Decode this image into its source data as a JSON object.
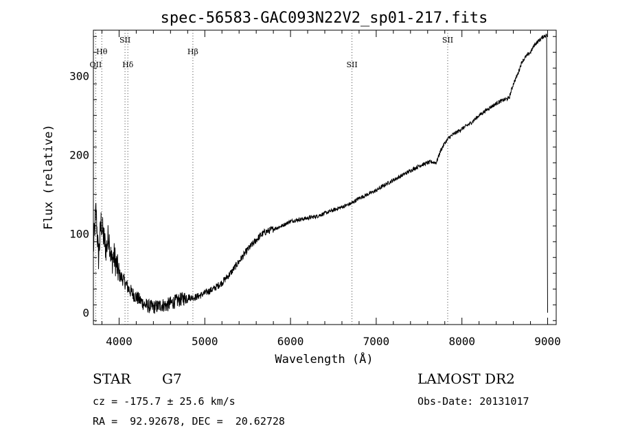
{
  "chart_data": {
    "type": "line",
    "title": "spec-56583-GAC093N22V2_sp01-217.fits",
    "xlabel": "Wavelength (Å)",
    "ylabel": "Flux (relative)",
    "xlim": [
      3700,
      9100
    ],
    "ylim": [
      -15,
      358
    ],
    "x_ticks": [
      4000,
      5000,
      6000,
      7000,
      8000,
      9000
    ],
    "y_ticks": [
      0,
      100,
      200,
      300
    ],
    "grid": false,
    "series": [
      {
        "x": [
          3700,
          3730,
          3760,
          3790,
          3820,
          3850,
          3880,
          3910,
          3940,
          3970,
          4000,
          4050,
          4100,
          4150,
          4200,
          4250,
          4300,
          4350,
          4400,
          4450,
          4500,
          4550,
          4600,
          4650,
          4700,
          4750,
          4800,
          4850,
          4900,
          4950,
          5000,
          5100,
          5200,
          5300,
          5400,
          5500,
          5600,
          5650,
          5700,
          5750,
          5800,
          5900,
          6000,
          6100,
          6200,
          6300,
          6400,
          6500,
          6600,
          6700,
          6800,
          6900,
          7000,
          7100,
          7200,
          7300,
          7400,
          7500,
          7600,
          7650,
          7700,
          7750,
          7800,
          7850,
          7900,
          8000,
          8100,
          8200,
          8300,
          8400,
          8450,
          8500,
          8550,
          8600,
          8650,
          8700,
          8750,
          8800,
          8850,
          8900,
          8950,
          8990,
          9000
        ],
        "y": [
          80,
          130,
          70,
          115,
          95,
          80,
          100,
          65,
          72,
          60,
          48,
          42,
          32,
          25,
          20,
          15,
          10,
          8,
          7,
          8,
          10,
          9,
          12,
          14,
          16,
          18,
          20,
          19,
          20,
          22,
          25,
          30,
          38,
          50,
          65,
          80,
          92,
          98,
          102,
          104,
          106,
          110,
          116,
          118,
          120,
          122,
          126,
          130,
          134,
          138,
          145,
          150,
          155,
          162,
          168,
          174,
          180,
          186,
          190,
          191,
          190,
          205,
          215,
          222,
          226,
          233,
          240,
          250,
          258,
          265,
          268,
          270,
          272,
          290,
          302,
          318,
          325,
          330,
          340,
          345,
          350,
          352,
          0
        ]
      }
    ],
    "annotations": [
      {
        "label": "OII",
        "x": 3727
      },
      {
        "label": "Hθ",
        "x": 3798
      },
      {
        "label": "SII",
        "x": 4069
      },
      {
        "label": "Hδ",
        "x": 4102
      },
      {
        "label": "Hβ",
        "x": 4861
      },
      {
        "label": "SII",
        "x": 6717
      },
      {
        "label": "SII",
        "x": 7834
      }
    ]
  },
  "info": {
    "object_class": "STAR",
    "subclass": "G7",
    "survey": "LAMOST DR2",
    "redshift_line": "cz = -175.7 ± 25.6 km/s",
    "obs_date_line": "Obs-Date: 20131017",
    "coords_line": "RA =  92.92678, DEC =  20.62728"
  }
}
